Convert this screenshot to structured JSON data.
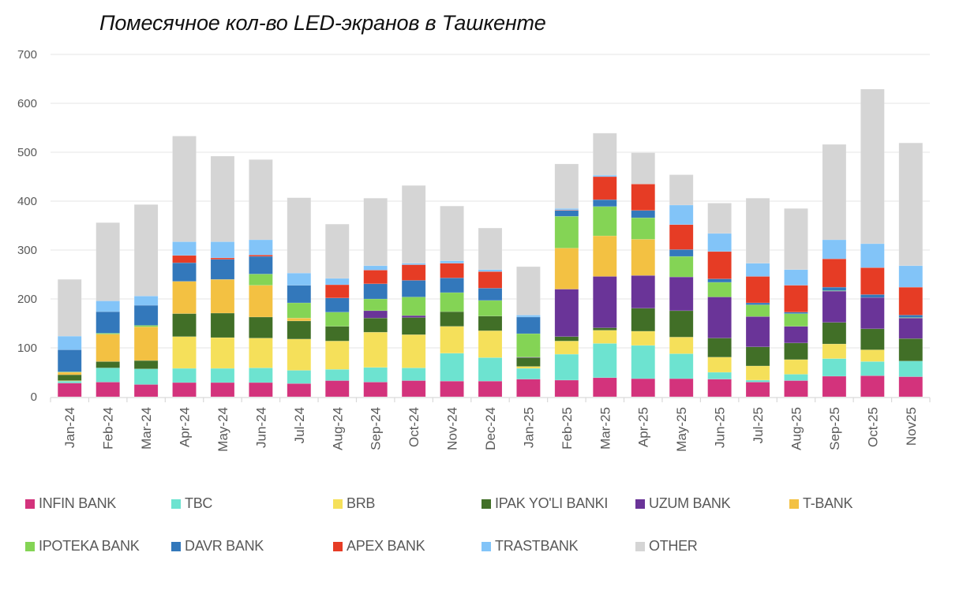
{
  "chart_data": {
    "type": "bar",
    "stacked": true,
    "title": "Помесячное кол-во LED-экранов в Ташкенте",
    "xlabel": "",
    "ylabel": "",
    "ylim": [
      0,
      700
    ],
    "yticks": [
      0,
      100,
      200,
      300,
      400,
      500,
      600,
      700
    ],
    "grid": true,
    "legend_position": "bottom",
    "categories": [
      "Jan-24",
      "Feb-24",
      "Mar-24",
      "Apr-24",
      "May-24",
      "Jun-24",
      "Jul-24",
      "Aug-24",
      "Sep-24",
      "Oct-24",
      "Nov-24",
      "Dec-24",
      "Jan-25",
      "Feb-25",
      "Mar-25",
      "Apr-25",
      "May-25",
      "Jun-25",
      "Jul-25",
      "Aug-25",
      "Sep-25",
      "Oct-25",
      "Nov25"
    ],
    "series": [
      {
        "name": "INFIN BANK",
        "color": "#D3337C",
        "values": [
          28,
          30,
          25,
          29,
          29,
          29,
          27,
          33,
          30,
          33,
          32,
          32,
          36,
          34,
          39,
          37,
          37,
          36,
          30,
          33,
          42,
          43,
          41
        ]
      },
      {
        "name": "TBC",
        "color": "#6DE3D0",
        "values": [
          4,
          29,
          32,
          29,
          29,
          30,
          27,
          23,
          30,
          26,
          57,
          48,
          22,
          53,
          70,
          68,
          51,
          14,
          4,
          13,
          36,
          29,
          32
        ]
      },
      {
        "name": "BRB",
        "color": "#F5E05A",
        "values": [
          1,
          0,
          0,
          65,
          63,
          61,
          64,
          58,
          72,
          68,
          55,
          55,
          4,
          27,
          27,
          29,
          34,
          31,
          29,
          30,
          30,
          24,
          0
        ]
      },
      {
        "name": "IPAK YO'LI BANKI",
        "color": "#416F27",
        "values": [
          12,
          13,
          17,
          47,
          50,
          43,
          37,
          30,
          29,
          35,
          30,
          30,
          18,
          9,
          5,
          47,
          54,
          39,
          39,
          34,
          44,
          43,
          46
        ]
      },
      {
        "name": "UZUM BANK",
        "color": "#6A3498",
        "values": [
          0,
          0,
          0,
          0,
          0,
          0,
          0,
          0,
          15,
          4,
          0,
          0,
          1,
          97,
          105,
          67,
          69,
          84,
          62,
          34,
          64,
          64,
          42
        ]
      },
      {
        "name": "T-BANK",
        "color": "#F3C142",
        "values": [
          5,
          56,
          69,
          66,
          69,
          65,
          6,
          0,
          0,
          0,
          0,
          0,
          0,
          84,
          83,
          74,
          0,
          0,
          0,
          0,
          0,
          0,
          0
        ]
      },
      {
        "name": "IPOTEKA BANK",
        "color": "#84D455",
        "values": [
          1,
          2,
          3,
          0,
          0,
          23,
          31,
          29,
          24,
          38,
          39,
          32,
          48,
          65,
          60,
          44,
          42,
          30,
          24,
          26,
          1,
          0,
          1
        ]
      },
      {
        "name": "DAVR BANK",
        "color": "#3378BB",
        "values": [
          45,
          44,
          41,
          38,
          41,
          36,
          36,
          29,
          31,
          34,
          30,
          25,
          34,
          12,
          14,
          15,
          14,
          7,
          4,
          3,
          7,
          6,
          5
        ]
      },
      {
        "name": "APEX BANK",
        "color": "#E63C25",
        "values": [
          0,
          0,
          0,
          15,
          3,
          3,
          0,
          27,
          28,
          32,
          30,
          34,
          0,
          1,
          47,
          54,
          51,
          56,
          54,
          55,
          58,
          55,
          57
        ]
      },
      {
        "name": "TRASTBANK",
        "color": "#82C4F8",
        "values": [
          28,
          22,
          19,
          28,
          33,
          31,
          25,
          13,
          9,
          3,
          5,
          4,
          4,
          3,
          3,
          0,
          40,
          37,
          27,
          32,
          39,
          49,
          44
        ]
      },
      {
        "name": "OTHER",
        "color": "#D5D5D5",
        "values": [
          116,
          160,
          187,
          216,
          175,
          164,
          154,
          111,
          138,
          159,
          112,
          85,
          99,
          91,
          86,
          64,
          62,
          62,
          133,
          125,
          195,
          316,
          251
        ]
      }
    ]
  }
}
